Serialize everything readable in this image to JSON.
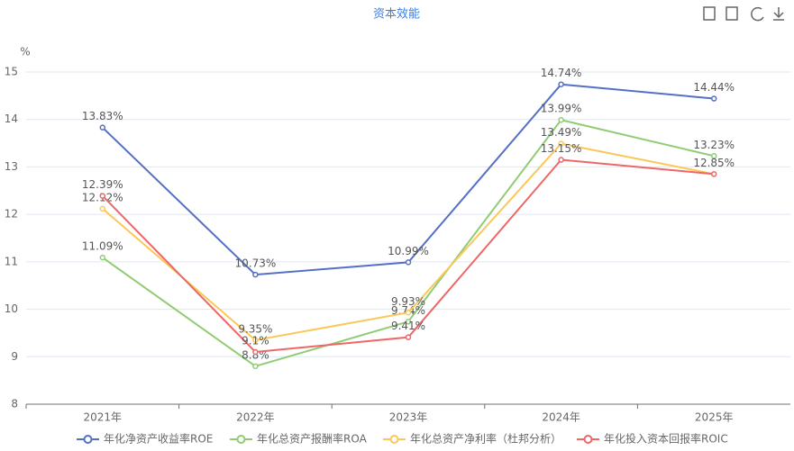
{
  "chart_data": {
    "type": "line",
    "title": "资本效能",
    "y_label": "%",
    "categories": [
      "2021年",
      "2022年",
      "2023年",
      "2024年",
      "2025年"
    ],
    "ylim": [
      8,
      15
    ],
    "yticks": [
      8,
      9,
      10,
      11,
      12,
      13,
      14,
      15
    ],
    "grid": true,
    "legend": "bottom",
    "series": [
      {
        "name": "年化净资产收益率ROE",
        "color": "#5470c6",
        "values": [
          13.83,
          10.73,
          10.99,
          14.74,
          14.44
        ],
        "value_labels": [
          "13.83%",
          "10.73%",
          "10.99%",
          "14.74%",
          "14.44%"
        ]
      },
      {
        "name": "年化总资产报酬率ROA",
        "color": "#91cc75",
        "values": [
          11.09,
          8.8,
          9.74,
          13.99,
          13.23
        ],
        "value_labels": [
          "11.09%",
          "8.8%",
          "9.74%",
          "13.99%",
          "13.23%"
        ]
      },
      {
        "name": "年化总资产净利率（杜邦分析）",
        "color": "#fac858",
        "values": [
          12.12,
          9.35,
          9.93,
          13.49,
          12.85
        ],
        "value_labels": [
          "12.12%",
          "9.35%",
          "9.93%",
          "13.49%",
          "12.85%"
        ]
      },
      {
        "name": "年化投入资本回报率ROIC",
        "color": "#ee6666",
        "values": [
          12.39,
          9.1,
          9.41,
          13.15,
          12.85
        ],
        "value_labels": [
          "12.39%",
          "9.1%",
          "9.41%",
          "13.15%",
          null
        ]
      }
    ]
  }
}
